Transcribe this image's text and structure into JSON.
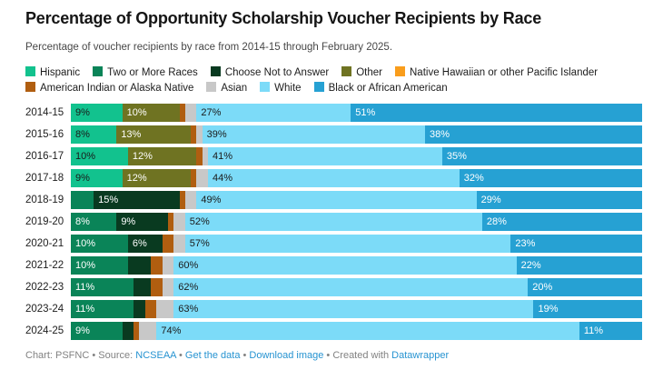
{
  "header": {
    "title": "Percentage of Opportunity Scholarship Voucher Recipients by Race",
    "subtitle": "Percentage of voucher recipients by race from 2014-15 through February 2025."
  },
  "colors": {
    "link_blue": "#2693d1",
    "footer_gray": "#828282",
    "title_black": "#151515"
  },
  "chart_data": {
    "type": "bar",
    "stacked": true,
    "orientation": "horizontal",
    "unit": "%",
    "label_threshold": 6,
    "title": "Percentage of Opportunity Scholarship Voucher Recipients by Race",
    "xlabel": "",
    "ylabel": "",
    "xlim": [
      0,
      100
    ],
    "grid": false,
    "legend_position": "top",
    "categories": [
      "2014-15",
      "2015-16",
      "2016-17",
      "2017-18",
      "2018-19",
      "2019-20",
      "2020-21",
      "2021-22",
      "2022-23",
      "2023-24",
      "2024-25"
    ],
    "series": [
      {
        "name": "Hispanic",
        "color": "#12c28e",
        "text": "dark",
        "values": [
          9,
          8,
          10,
          9,
          0,
          0,
          0,
          0,
          0,
          0,
          0
        ]
      },
      {
        "name": "Two or More Races",
        "color": "#0a8458",
        "text": "white",
        "values": [
          0,
          0,
          0,
          0,
          4,
          8,
          10,
          10,
          11,
          11,
          9
        ]
      },
      {
        "name": "Choose Not to Answer",
        "color": "#093a20",
        "text": "white",
        "values": [
          0,
          0,
          0,
          0,
          15,
          9,
          6,
          4,
          3,
          2,
          2
        ]
      },
      {
        "name": "Other",
        "color": "#6f7322",
        "text": "white",
        "values": [
          10,
          13,
          12,
          12,
          0,
          0,
          0,
          0,
          0,
          0,
          0
        ]
      },
      {
        "name": "Native Hawaiian or other Pacific Islander",
        "color": "#f99d1c",
        "text": "dark",
        "values": [
          0,
          0,
          0,
          0,
          0,
          0,
          0,
          0,
          0,
          0,
          0
        ]
      },
      {
        "name": "American Indian or Alaska Native",
        "color": "#b05e10",
        "text": "white",
        "values": [
          1,
          1,
          1,
          1,
          1,
          1,
          2,
          2,
          2,
          2,
          1
        ]
      },
      {
        "name": "Asian",
        "color": "#c8c8c8",
        "text": "dark",
        "values": [
          2,
          1,
          1,
          2,
          2,
          2,
          2,
          2,
          2,
          3,
          3
        ]
      },
      {
        "name": "White",
        "color": "#7cdbf8",
        "text": "dark",
        "values": [
          27,
          39,
          41,
          44,
          49,
          52,
          57,
          60,
          62,
          63,
          74
        ]
      },
      {
        "name": "Black or African American",
        "color": "#26a1d3",
        "text": "white",
        "values": [
          51,
          38,
          35,
          32,
          29,
          28,
          23,
          22,
          20,
          19,
          11
        ]
      }
    ]
  },
  "footer": {
    "chart_credit": "Chart: PSFNC",
    "separator": "•",
    "source_label": "Source:",
    "source_link": "NCSEAA",
    "get_data_link": "Get the data",
    "download_link": "Download image",
    "created_with": "Created with",
    "datawrapper_link": "Datawrapper"
  }
}
